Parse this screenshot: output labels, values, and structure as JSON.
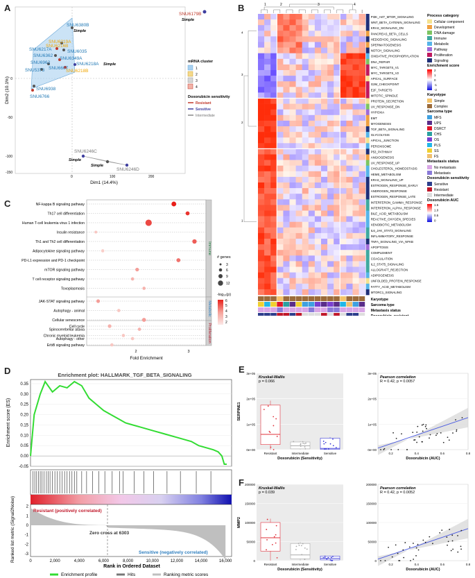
{
  "panels": {
    "A": "A",
    "B": "B",
    "C": "C",
    "D": "D",
    "E": "E",
    "F": "F"
  },
  "pca": {
    "xlabel": "Dim1 (14.4%)",
    "ylabel": "Dim2 (10.1%)",
    "xticks": [
      "0",
      "100",
      "200"
    ],
    "yticks": [
      "0",
      "-50",
      "-100",
      "-150"
    ],
    "points": [
      {
        "label": "SNU6179B",
        "color": "#c0392b",
        "sublabel": "Simple"
      },
      {
        "label": "SNU6380B",
        "color": "#1f77b4",
        "sublabel": "Simple"
      },
      {
        "label": "SNU6219A",
        "color": "#f0a500"
      },
      {
        "label": "SNU6216B",
        "color": "#f0a500"
      },
      {
        "label": "SNU6217A",
        "color": "#1f77b4"
      },
      {
        "label": "SNU6035",
        "color": "#1f77b4"
      },
      {
        "label": "SNU6362",
        "color": "#1f77b4"
      },
      {
        "label": "SNU6349A",
        "color": "#1f77b4"
      },
      {
        "label": "SNU6962",
        "color": "#1f77b4"
      },
      {
        "label": "SNU6218A",
        "color": "#1f77b4",
        "sublabel": "Simple"
      },
      {
        "label": "SNU6218B",
        "color": "#f0a500"
      },
      {
        "label": "SNU5373",
        "color": "#1f77b4"
      },
      {
        "label": "SNU6607",
        "color": "#1f77b4"
      },
      {
        "label": "SNU6938",
        "color": "#1f77b4"
      },
      {
        "label": "SNU6766",
        "color": "#1f77b4"
      },
      {
        "label": "SNU6246C",
        "color": "#888888",
        "sublabel": "Simple"
      },
      {
        "label": "SNU6246D",
        "color": "#888888",
        "sublabel": "Simple"
      }
    ],
    "legend": {
      "cluster_title": "mRNA cluster",
      "clusters": [
        "1",
        "2",
        "3",
        "4"
      ],
      "sens_title": "Doxorubicin sensitivity",
      "sens": [
        {
          "name": "Resistant",
          "color": "#c0392b"
        },
        {
          "name": "Sensitive",
          "color": "#3f3f9f"
        },
        {
          "name": "Intermediate",
          "color": "#888888"
        }
      ]
    }
  },
  "heatmap": {
    "col_clusters": [
      "1",
      "2",
      "3",
      "4"
    ],
    "categories_title": "Process category",
    "categories": [
      {
        "name": "Cellular component",
        "color": "#f5e28f"
      },
      {
        "name": "Development",
        "color": "#f0a040"
      },
      {
        "name": "DNA damage",
        "color": "#7dc462"
      },
      {
        "name": "Immune",
        "color": "#3fa9a0"
      },
      {
        "name": "Metabolic",
        "color": "#56b4e9"
      },
      {
        "name": "Pathway",
        "color": "#a06ad8"
      },
      {
        "name": "Proliferation",
        "color": "#c0185e"
      },
      {
        "name": "Signaling",
        "color": "#1f2f78"
      }
    ],
    "score_title": "Enrichment score",
    "score_ticks": [
      "2",
      "1",
      "0",
      "-1",
      "-2"
    ],
    "karyotype_title": "Karyotype",
    "karyotype": [
      {
        "name": "Simple",
        "color": "#f5c46a"
      },
      {
        "name": "Complex",
        "color": "#9c6b3a"
      }
    ],
    "sarcoma_title": "Sarcoma type",
    "sarcoma": [
      {
        "name": "MFS",
        "color": "#3fa0e0"
      },
      {
        "name": "UPS",
        "color": "#5a2d8a"
      },
      {
        "name": "DSRCT",
        "color": "#e0182a"
      },
      {
        "name": "CHS",
        "color": "#2aa0a0"
      },
      {
        "name": "OS",
        "color": "#7a3fd0"
      },
      {
        "name": "PLS",
        "color": "#22b7e8"
      },
      {
        "name": "SS",
        "color": "#f0d030"
      },
      {
        "name": "FS",
        "color": "#f0c070"
      }
    ],
    "meta_title": "Metastasis status",
    "meta": [
      {
        "name": "No metastasis",
        "color": "#d9a6e6"
      },
      {
        "name": "Metastasis",
        "color": "#8a7ad8"
      }
    ],
    "doxo_title": "Doxorubicin sensitivity",
    "doxo": [
      {
        "name": "Sensitive",
        "color": "#2d3e8c"
      },
      {
        "name": "Resistant",
        "color": "#c0182a"
      },
      {
        "name": "Intermediate",
        "color": "#dddddd"
      }
    ],
    "auc_title": "Doxorubicin AUC",
    "auc_ticks": [
      "1.5",
      "1.0",
      "0.5",
      "0"
    ],
    "annot_labels": [
      "Karyotype",
      "Sarcoma type",
      "Metastasis status",
      "Doxorubicin_resistant",
      "Doxorubicin_AUC"
    ],
    "rows": [
      "PI3K_AKT_MTOR_SIGNALING",
      "WNT_BETA_CATENIN_SIGNALING",
      "KRAS_SIGNALING_DN",
      "PANCREAS_BETA_CELLS",
      "HEDGEHOG_SIGNALING",
      "SPERMATOGENESIS",
      "NOTCH_SIGNALING",
      "OXIDATIVE_PHOSPHORYLATION",
      "DNA_REPAIR",
      "MYC_TARGETS_V1",
      "MYC_TARGETS_V2",
      "APICAL_SURFACE",
      "G2M_CHECKPOINT",
      "E2F_TARGETS",
      "MITOTIC_SPINDLE",
      "PROTEIN_SECRETION",
      "UV_RESPONSE_DN",
      "HYPOXIA",
      "EMT",
      "MYOGENESIS",
      "TGF_BETA_SIGNALING",
      "GLYCOLYSIS",
      "APICAL_JUNCTION",
      "PEROXISOME",
      "P53_PATHWAY",
      "ANGIOGENESIS",
      "UV_RESPONSE_UP",
      "CHOLESTEROL_HOMEOSTASIS",
      "HEME_METABOLISM",
      "KRAS_SIGNALING_UP",
      "ESTROGEN_RESPONSE_EARLY",
      "ANDROGEN_RESPONSE",
      "ESTROGEN_RESPONSE_LATE",
      "INTERFERON_GAMMA_RESPONSE",
      "INTERFERON_ALPHA_RESPONSE",
      "BILE_ACID_METABOLISM",
      "REACTIVE_OXYGEN_SPECIES",
      "XENOBIOTIC_METABOLISM",
      "IL6_JAK_STAT3_SIGNALING",
      "INFLAMMATORY_RESPONSE",
      "TNFA_SIGNALING_VIA_NFKB",
      "APOPTOSIS",
      "COMPLEMENT",
      "COAGULATION",
      "IL2_STAT5_SIGNALING",
      "ALLOGRAFT_REJECTION",
      "ADIPOGENESIS",
      "UNFOLDED_PROTEIN_RESPONSE",
      "FATTY_ACID_METABOLISM",
      "MTORC1_SIGNALING"
    ],
    "samples": [
      "SNU6380B",
      "SNU6246C",
      "SNU6246D",
      "SNU6179B",
      "SNU6219A",
      "SNU6218A",
      "SNU6035",
      "SNU6938",
      "SNU6962",
      "SNU6362",
      "SNU6349A",
      "SNU6218B",
      "SNU5373",
      "SNU6766",
      "SNU6217A",
      "SNU6607",
      "SNU6216B"
    ],
    "row_groups": [
      "4",
      "3",
      "2",
      "1"
    ]
  },
  "enrich": {
    "terms": [
      "NF-kappa B signaling pathway",
      "Th17 cell differentiation",
      "Human T-cell leukemia virus 1 infection",
      "Insulin resistance",
      "Th1 and Th2 cell differentiation",
      "Adipocytokine signaling pathway",
      "PD-L1 expression and PD-1 checkpoint",
      "mTOR signaling pathway",
      "T cell receptor signaling pathway",
      "Toxoplasmosis",
      "JAK-STAT signaling pathway",
      "Autophagy - animal",
      "Cellular senescence",
      "Spinocerebellar ataxia",
      "Autophagy - other",
      "Cell cycle",
      "Chronic myeloid leukemia",
      "ErbB signaling pathway"
    ],
    "groups": [
      "Immune",
      "Metabolic",
      "Proliferation"
    ],
    "xlabel": "Fold Enrichment",
    "xticks": [
      "2",
      "3"
    ],
    "size_title": "# genes",
    "sizes": [
      "3",
      "6",
      "9",
      "12"
    ],
    "color_title": "-log₁₀(p)",
    "color_ticks": [
      "6",
      "5",
      "4",
      "3",
      "2"
    ]
  },
  "chart_data": [
    {
      "type": "scatter",
      "title": "Enrichment of KEGG pathways",
      "xlabel": "Fold Enrichment",
      "x": [
        3.1,
        3.4,
        2.55,
        1.4,
        3.55,
        1.55,
        3.2,
        2.3,
        2.2,
        2.45,
        1.45,
        1.9,
        2.45,
        2.35,
        2.2,
        1.7,
        2.0,
        1.75
      ],
      "sizes": [
        8,
        6,
        12,
        3,
        7,
        4,
        6,
        5,
        4,
        4,
        5,
        4,
        6,
        4,
        4,
        5,
        4,
        4
      ],
      "neglog10p": [
        6.5,
        6,
        5.5,
        2.5,
        5,
        2.3,
        4.5,
        3.5,
        3,
        3,
        3.5,
        2.5,
        3.5,
        3,
        2.5,
        3,
        2.5,
        2.5
      ],
      "xlim": [
        1.2,
        3.8
      ]
    },
    {
      "type": "line",
      "title": "Enrichment plot: HALLMARK_TGF_BETA_SIGNALING",
      "xlabel": "Rank in Ordered Dataset",
      "ylabel": "Enrichment score (ES)",
      "x": [
        0,
        300,
        800,
        1200,
        1800,
        2400,
        3000,
        3600,
        4200,
        4800,
        5400,
        6000,
        6600,
        7200,
        7800,
        8400,
        9000,
        9600,
        10200,
        10800,
        11400,
        12000,
        12600,
        13200,
        13800,
        14400,
        15000,
        15400,
        15700,
        15900,
        16100
      ],
      "y": [
        0.0,
        0.2,
        0.3,
        0.36,
        0.31,
        0.34,
        0.33,
        0.36,
        0.34,
        0.28,
        0.25,
        0.22,
        0.2,
        0.18,
        0.16,
        0.15,
        0.14,
        0.13,
        0.12,
        0.11,
        0.1,
        0.09,
        0.08,
        0.07,
        0.05,
        0.04,
        0.03,
        0.02,
        0.0,
        -0.04,
        -0.04
      ],
      "xlim": [
        0,
        16500
      ],
      "ylim": [
        -0.05,
        0.37
      ],
      "yticks": [
        "0.35",
        "0.30",
        "0.25",
        "0.20",
        "0.15",
        "0.10",
        "0.05",
        "0.00",
        "-0.05"
      ],
      "xticks": [
        "0",
        "2,000",
        "4,000",
        "6,000",
        "8,000",
        "10,000",
        "12,000",
        "14,000",
        "16,000"
      ],
      "ranked_ylabel": "Ranked list metric (Signal2Noise)",
      "ranked_yticks": [
        "2",
        "1",
        "0",
        "-1",
        "-2",
        "-3"
      ],
      "zero_cross": "Zero cross at 6303",
      "resistant_label": "Resistant (positively correlated)",
      "sensitive_label": "Sensitive (negatively correlated)",
      "legend": [
        "Enrichment profile",
        "Hits",
        "Ranking metric scores"
      ]
    },
    {
      "type": "box",
      "gene": "SERPINE1",
      "test": "Kruskal-Wallis",
      "p": "p = 0.066",
      "categories": [
        "Resistant",
        "Intermediate",
        "Sensitive"
      ],
      "xlabel": "Doxorubicin (Sensitivity)",
      "yticks": [
        "3e+05",
        "2e+05",
        "1e+05",
        "0e+00"
      ],
      "boxes": [
        {
          "q1": 20000,
          "median": 60000,
          "q3": 175000
        },
        {
          "q1": 3000,
          "median": 15000,
          "q3": 30000
        },
        {
          "q1": 1000,
          "median": 5000,
          "q3": 45000
        }
      ]
    },
    {
      "type": "scatter",
      "gene": "SERPINE1",
      "test": "Pearson correlation",
      "r": "R = 0.42, p = 0.0057",
      "xlabel": "Doxorubicin (AUC)",
      "xticks": [
        "0.2",
        "0.4",
        "0.6",
        "0.8"
      ],
      "yticks": [
        "3e+05",
        "2e+05",
        "1e+05",
        "0e+00"
      ]
    },
    {
      "type": "box",
      "gene": "MMP2",
      "test": "Kruskal-Wallis",
      "p": "p = 0.039",
      "categories": [
        "Resistant",
        "Intermediate",
        "Sensitive"
      ],
      "xlabel": "Doxorubicin (Sensitivity)",
      "yticks": [
        "200000",
        "150000",
        "100000",
        "50000",
        "0"
      ],
      "boxes": [
        {
          "q1": 25000,
          "median": 60000,
          "q3": 100000
        },
        {
          "q1": 5000,
          "median": 15000,
          "q3": 45000
        },
        {
          "q1": 2000,
          "median": 6000,
          "q3": 12000
        }
      ]
    },
    {
      "type": "scatter",
      "gene": "MMP2",
      "test": "Pearson correlation",
      "r": "R = 0.42, p = 0.0052",
      "xlabel": "Doxorubicin (AUC)",
      "xticks": [
        "0.2",
        "0.4",
        "0.6",
        "0.8"
      ],
      "yticks": [
        "200000",
        "150000",
        "100000",
        "50000",
        "0"
      ]
    }
  ]
}
